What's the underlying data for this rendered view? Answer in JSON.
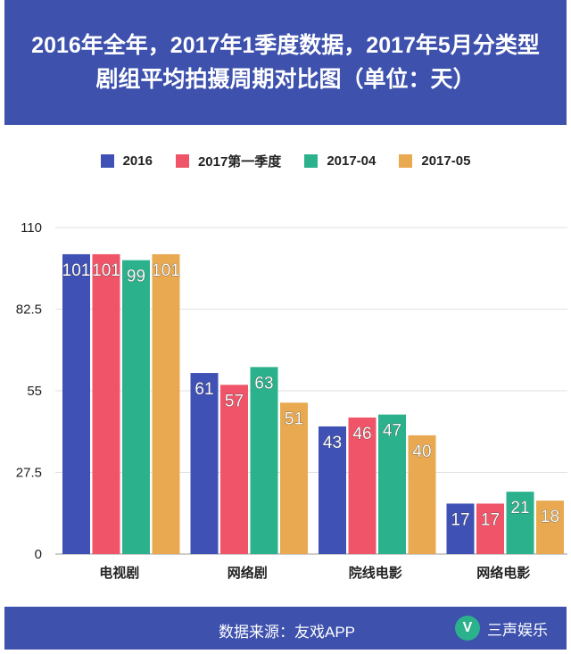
{
  "title": "2016年全年，2017年1季度数据，2017年5月分类型剧组平均拍摄周期对比图（单位：天）",
  "footer": {
    "source": "数据来源：友戏APP",
    "brand": "三声娱乐",
    "logo_glyph": "V"
  },
  "chart_data": {
    "type": "bar",
    "title": "2016年全年，2017年1季度数据，2017年5月分类型剧组平均拍摄周期对比图（单位：天）",
    "categories": [
      "电视剧",
      "网络剧",
      "院线电影",
      "网络电影"
    ],
    "series": [
      {
        "name": "2016",
        "color": "#3f51b5",
        "values": [
          101,
          61,
          43,
          17
        ]
      },
      {
        "name": "2017第一季度",
        "color": "#ef5468",
        "values": [
          101,
          57,
          46,
          17
        ]
      },
      {
        "name": "2017-04",
        "color": "#2bb18b",
        "values": [
          99,
          63,
          47,
          21
        ]
      },
      {
        "name": "2017-05",
        "color": "#e8a951",
        "values": [
          101,
          51,
          40,
          18
        ]
      }
    ],
    "yticks": [
      "0",
      "27.5",
      "55",
      "82.5",
      "110"
    ],
    "ylim": [
      0,
      110
    ],
    "legend": "top",
    "grid": true
  }
}
